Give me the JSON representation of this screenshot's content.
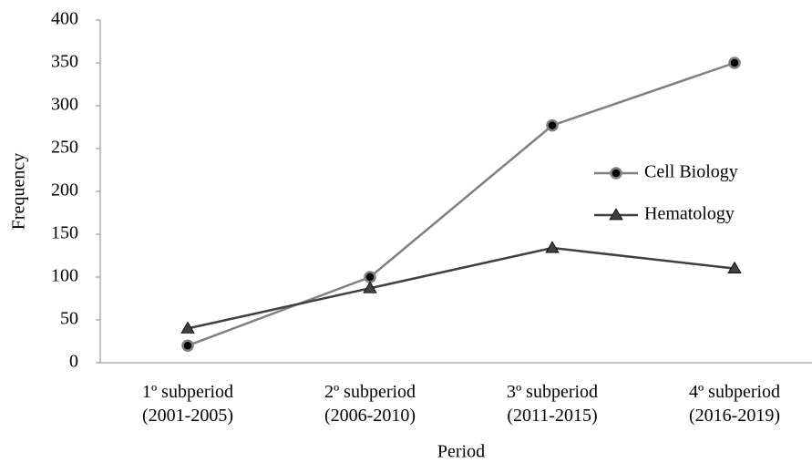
{
  "chart_data": {
    "type": "line",
    "x_label": "Period",
    "y_label": "Frequency",
    "categories": [
      [
        "1º subperiod",
        "(2001-2005)"
      ],
      [
        "2º subperiod",
        "(2006-2010)"
      ],
      [
        "3º subperiod",
        "(2011-2015)"
      ],
      [
        "4º subperiod",
        "(2016-2019)"
      ]
    ],
    "series": [
      {
        "name": "Cell Biology",
        "color": "#808080",
        "marker": "circle",
        "values": [
          20,
          100,
          277,
          350
        ]
      },
      {
        "name": "Hematology",
        "color": "#404040",
        "marker": "triangle",
        "values": [
          40,
          87,
          134,
          110
        ]
      }
    ],
    "ylim": [
      0,
      400
    ],
    "yticks": [
      0,
      50,
      100,
      150,
      200,
      250,
      300,
      350,
      400
    ],
    "grid": false,
    "legend": "right"
  }
}
